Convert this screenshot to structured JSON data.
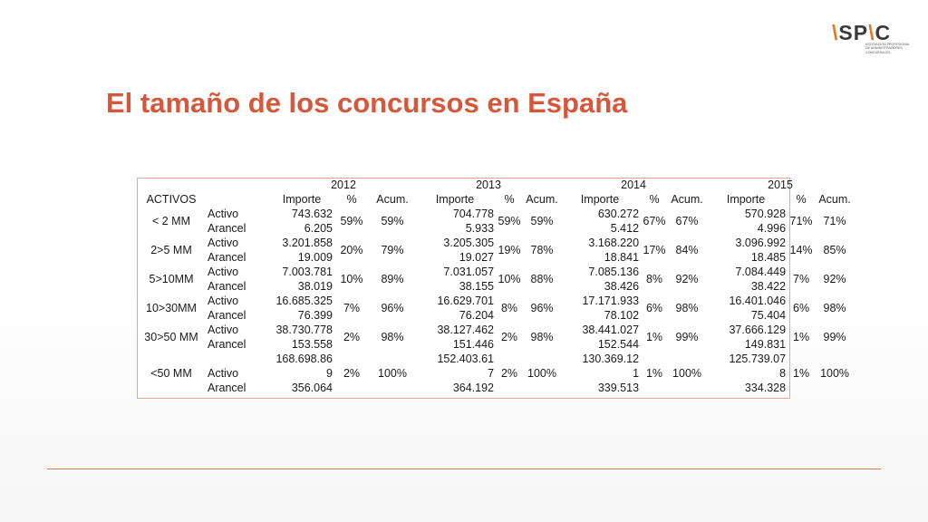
{
  "logo": {
    "prefix": "\\",
    "mid": "SP",
    "accent": "\\",
    "suffix": "C",
    "subtitle": "ASOCIACIÓN PROFESIONAL\nDE ADMINISTRADORES\nCONCURSALES"
  },
  "title": "El tamaño de los concursos en España",
  "table": {
    "years": [
      "2012",
      "2013",
      "2014",
      "2015"
    ],
    "activos_label": "ACTIVOS",
    "col_headers": {
      "importe": "Importe",
      "pct": "%",
      "acum": "Acum."
    },
    "groups": [
      {
        "name": "< 2 MM",
        "activo_label": "Activo",
        "arancel_label": "Arancel",
        "years": [
          {
            "activo": "743.632",
            "arancel": "6.205",
            "pct": "59%",
            "acum": "59%"
          },
          {
            "activo": "704.778",
            "arancel": "5.933",
            "pct": "59%",
            "acum": "59%"
          },
          {
            "activo": "630.272",
            "arancel": "5.412",
            "pct": "67%",
            "acum": "67%"
          },
          {
            "activo": "570.928",
            "arancel": "4.996",
            "pct": "71%",
            "acum": "71%"
          }
        ]
      },
      {
        "name": "2>5 MM",
        "activo_label": "Activo",
        "arancel_label": "Arancel",
        "years": [
          {
            "activo": "3.201.858",
            "arancel": "19.009",
            "pct": "20%",
            "acum": "79%"
          },
          {
            "activo": "3.205.305",
            "arancel": "19.027",
            "pct": "19%",
            "acum": "78%"
          },
          {
            "activo": "3.168.220",
            "arancel": "18.841",
            "pct": "17%",
            "acum": "84%"
          },
          {
            "activo": "3.096.992",
            "arancel": "18.485",
            "pct": "14%",
            "acum": "85%"
          }
        ]
      },
      {
        "name": "5>10MM",
        "activo_label": "Activo",
        "arancel_label": "Arancel",
        "years": [
          {
            "activo": "7.003.781",
            "arancel": "38.019",
            "pct": "10%",
            "acum": "89%"
          },
          {
            "activo": "7.031.057",
            "arancel": "38.155",
            "pct": "10%",
            "acum": "88%"
          },
          {
            "activo": "7.085.136",
            "arancel": "38.426",
            "pct": "8%",
            "acum": "92%"
          },
          {
            "activo": "7.084.449",
            "arancel": "38.422",
            "pct": "7%",
            "acum": "92%"
          }
        ]
      },
      {
        "name": "10>30MM",
        "activo_label": "Activo",
        "arancel_label": "Arancel",
        "years": [
          {
            "activo": "16.685.325",
            "arancel": "76.399",
            "pct": "7%",
            "acum": "96%"
          },
          {
            "activo": "16.629.701",
            "arancel": "76.204",
            "pct": "8%",
            "acum": "96%"
          },
          {
            "activo": "17.171.933",
            "arancel": "78.102",
            "pct": "6%",
            "acum": "98%"
          },
          {
            "activo": "16.401.046",
            "arancel": "75.404",
            "pct": "6%",
            "acum": "98%"
          }
        ]
      },
      {
        "name": "30>50 MM",
        "activo_label": "Activo",
        "arancel_label": "Arancel",
        "years": [
          {
            "activo": "38.730.778",
            "arancel": "153.558",
            "pct": "2%",
            "acum": "98%"
          },
          {
            "activo": "38.127.462",
            "arancel": "151.446",
            "pct": "2%",
            "acum": "98%"
          },
          {
            "activo": "38.441.027",
            "arancel": "152.544",
            "pct": "1%",
            "acum": "99%"
          },
          {
            "activo": "37.666.129",
            "arancel": "149.831",
            "pct": "1%",
            "acum": "99%"
          }
        ]
      }
    ],
    "last_group": {
      "name": "<50 MM",
      "activo_label": "Activo",
      "arancel_label": "Arancel",
      "years": [
        {
          "activo_a": "168.698.86",
          "activo_b": "9",
          "arancel": "356.064",
          "pct": "2%",
          "acum": "100%"
        },
        {
          "activo_a": "152.403.61",
          "activo_b": "7",
          "arancel": "364.192",
          "pct": "2%",
          "acum": "100%"
        },
        {
          "activo_a": "130.369.12",
          "activo_b": "1",
          "arancel": "339.513",
          "pct": "1%",
          "acum": "100%"
        },
        {
          "activo_a": "125.739.07",
          "activo_b": "8",
          "arancel": "334.328",
          "pct": "1%",
          "acum": "100%"
        }
      ]
    }
  },
  "colors": {
    "title": "#d4583b",
    "accent": "#e07b2a",
    "rule": "#d87a5e",
    "table_border": "#e8a58f"
  }
}
